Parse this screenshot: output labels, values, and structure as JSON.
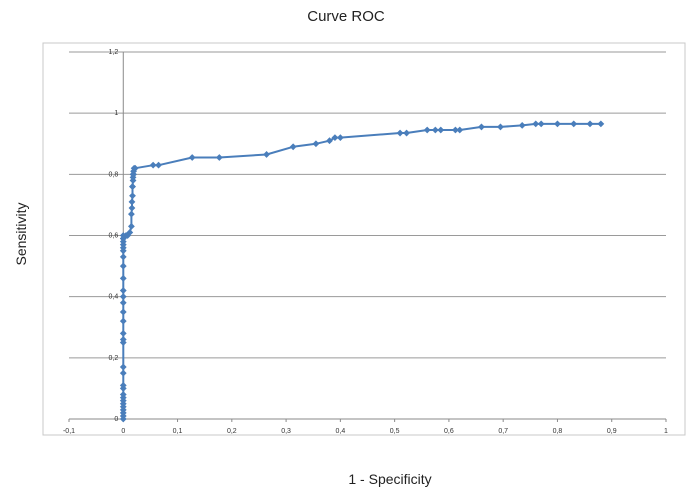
{
  "chart_data": {
    "type": "scatter",
    "title": "Curve ROC",
    "xlabel": "1 - Specificity",
    "ylabel": "Sensitivity",
    "xlim": [
      -0.1,
      1
    ],
    "ylim": [
      0,
      1.2
    ],
    "xticks": [
      -0.1,
      0,
      0.1,
      0.2,
      0.3,
      0.4,
      0.5,
      0.6,
      0.7,
      0.8,
      0.9,
      1
    ],
    "xtick_labels": [
      "-0,1",
      "0",
      "0,1",
      "0,2",
      "0,3",
      "0,4",
      "0,5",
      "0,6",
      "0,7",
      "0,8",
      "0,9",
      "1"
    ],
    "yticks": [
      0,
      0.2,
      0.4,
      0.6,
      0.8,
      1,
      1.2
    ],
    "ytick_labels": [
      "0",
      "0,2",
      "0,4",
      "0,6",
      "0,8",
      "1",
      "1,2"
    ],
    "grid": "horizontal",
    "line_color": "#4a7ebb",
    "series": [
      {
        "x": [
          0,
          0,
          0,
          0,
          0,
          0,
          0,
          0,
          0,
          0,
          0,
          0,
          0,
          0,
          0,
          0,
          0,
          0,
          0,
          0,
          0,
          0,
          0,
          0,
          0,
          0,
          0,
          0,
          0,
          0,
          0,
          0.005,
          0.008,
          0.012,
          0.015,
          0.015,
          0.016,
          0.016,
          0.017,
          0.017,
          0.017,
          0.018,
          0.018,
          0.018,
          0.019,
          0.019,
          0.02,
          0.022,
          0.055,
          0.065,
          0.127,
          0.177,
          0.264,
          0.313,
          0.355,
          0.38,
          0.39,
          0.4,
          0.51,
          0.522,
          0.56,
          0.575,
          0.585,
          0.612,
          0.62,
          0.66,
          0.695,
          0.735,
          0.76,
          0.77,
          0.8,
          0.83,
          0.86,
          0.88
        ],
        "y": [
          0,
          0.01,
          0.02,
          0.03,
          0.04,
          0.05,
          0.06,
          0.07,
          0.08,
          0.1,
          0.11,
          0.15,
          0.17,
          0.25,
          0.26,
          0.28,
          0.32,
          0.35,
          0.38,
          0.4,
          0.42,
          0.46,
          0.5,
          0.53,
          0.55,
          0.56,
          0.57,
          0.58,
          0.59,
          0.59,
          0.6,
          0.6,
          0.6,
          0.61,
          0.63,
          0.67,
          0.69,
          0.71,
          0.73,
          0.76,
          0.76,
          0.78,
          0.79,
          0.8,
          0.8,
          0.81,
          0.82,
          0.82,
          0.83,
          0.83,
          0.855,
          0.855,
          0.865,
          0.89,
          0.9,
          0.91,
          0.92,
          0.92,
          0.935,
          0.935,
          0.945,
          0.945,
          0.945,
          0.945,
          0.945,
          0.955,
          0.955,
          0.96,
          0.965,
          0.965,
          0.965,
          0.965,
          0.965,
          0.965
        ]
      }
    ]
  }
}
